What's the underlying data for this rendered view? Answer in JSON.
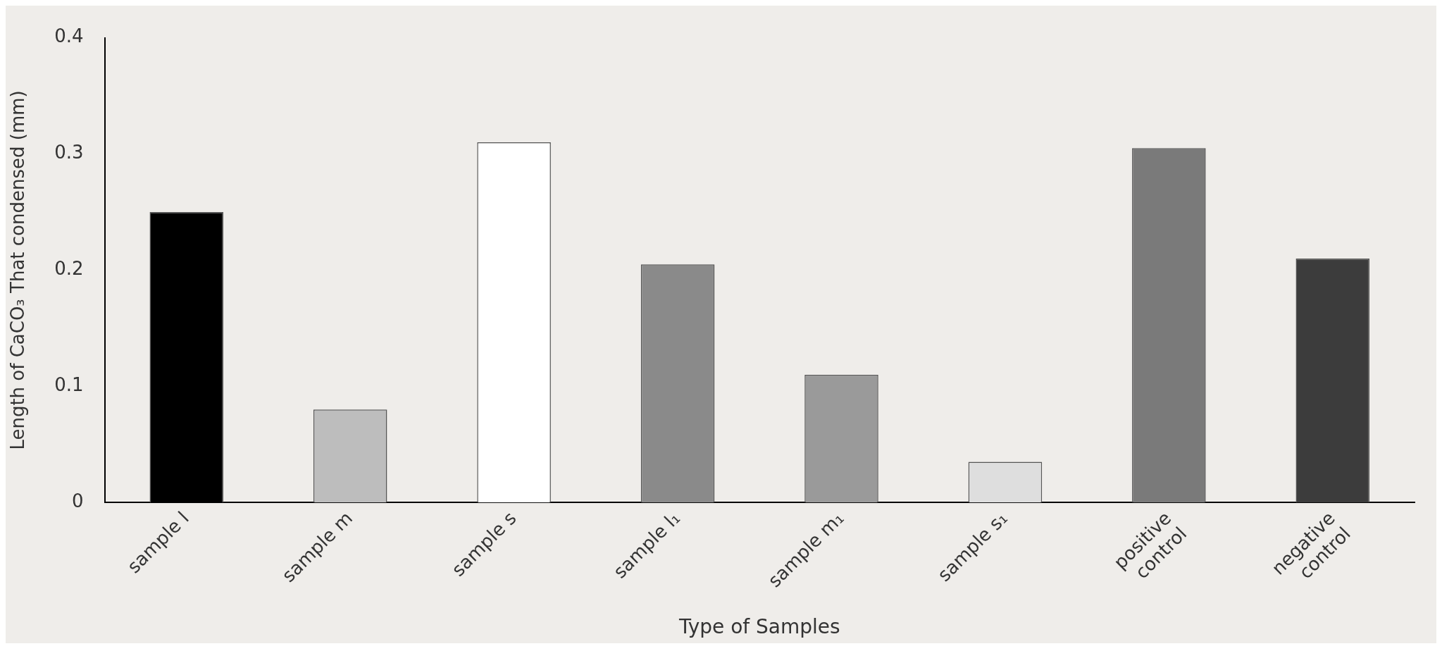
{
  "chart_data": {
    "type": "bar",
    "xlabel": "Type of Samples",
    "ylabel": "Length of CaCO₃ That condensed (mm)",
    "categories": [
      "sample l",
      "sample m",
      "sample s",
      "sample l₁",
      "sample m₁",
      "sample s₁",
      "positive control",
      "negative control"
    ],
    "values": [
      0.25,
      0.08,
      0.31,
      0.205,
      0.11,
      0.035,
      0.305,
      0.21
    ],
    "colors": [
      "#000000",
      "#bdbdbd",
      "#ffffff",
      "#8a8a8a",
      "#9a9a9a",
      "#dedede",
      "#7a7a7a",
      "#3c3c3c"
    ],
    "ylim": [
      0,
      0.4
    ],
    "yticks": [
      0,
      0.1,
      0.2,
      0.3,
      0.4
    ],
    "grid": false,
    "legend": false
  }
}
